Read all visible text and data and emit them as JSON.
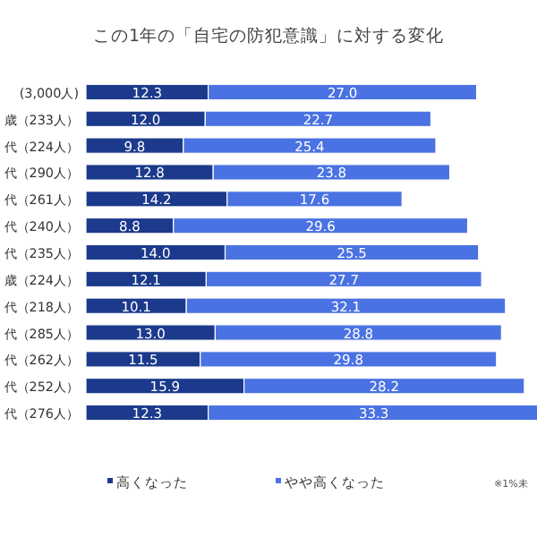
{
  "chart_data": {
    "type": "bar",
    "orientation": "horizontal",
    "stacked": true,
    "legend": "bottom",
    "title": "この1年の「自宅の防犯意識」に対する変化",
    "categories": [
      "(3,000人)",
      "歳（233人）",
      "代（224人）",
      "代（290人）",
      "代（261人）",
      "代（240人）",
      "代（235人）",
      "歳（224人）",
      "代（218人）",
      "代（285人）",
      "代（262人）",
      "代（252人）",
      "代（276人）"
    ],
    "series": [
      {
        "name": "高くなった",
        "color": "#1b3a8c",
        "values": [
          12.3,
          12.0,
          9.8,
          12.8,
          14.2,
          8.8,
          14.0,
          12.1,
          10.1,
          13.0,
          11.5,
          15.9,
          12.3
        ],
        "value_labels": [
          "12.3",
          "12.0",
          "9.8",
          "12.8",
          "14.2",
          "8.8",
          "14.0",
          "12.1",
          "10.1",
          "13.0",
          "11.5",
          "15.9",
          "12.3"
        ]
      },
      {
        "name": "やや高くなった",
        "color": "#4a72e2",
        "values": [
          27.0,
          22.7,
          25.4,
          23.8,
          17.6,
          29.6,
          25.5,
          27.7,
          32.1,
          28.8,
          29.8,
          28.2,
          33.3
        ],
        "value_labels": [
          "27.0",
          "22.7",
          "25.4",
          "23.8",
          "17.6",
          "29.6",
          "25.5",
          "27.7",
          "32.1",
          "28.8",
          "29.8",
          "28.2",
          "33.3"
        ]
      }
    ],
    "annotations": [
      "※1%未"
    ]
  }
}
